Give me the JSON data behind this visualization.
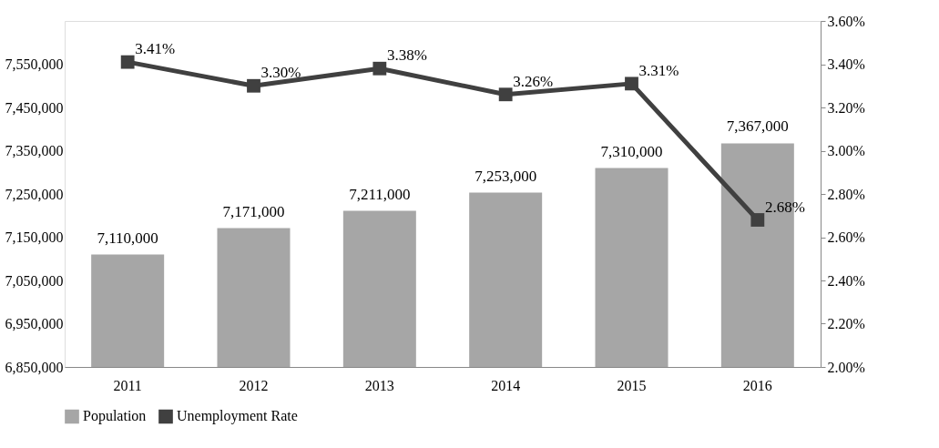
{
  "chart_data": {
    "type": "bar",
    "categories": [
      "2011",
      "2012",
      "2013",
      "2014",
      "2015",
      "2016"
    ],
    "series": [
      {
        "name": "Population",
        "color": "#a6a6a6",
        "values": [
          7110000,
          7171000,
          7211000,
          7253000,
          7310000,
          7367000
        ],
        "value_labels": [
          "7,110,000",
          "7,171,000",
          "7,211,000",
          "7,253,000",
          "7,310,000",
          "7,367,000"
        ]
      },
      {
        "name": "Unemployment Rate",
        "type": "line",
        "axis": "y2",
        "color": "#404040",
        "values": [
          3.41,
          3.3,
          3.38,
          3.26,
          3.31,
          2.68
        ],
        "value_labels": [
          "3.41%",
          "3.30%",
          "3.38%",
          "3.26%",
          "3.31%",
          "2.68%"
        ]
      }
    ],
    "ylim": [
      6850000,
      7650000
    ],
    "yticks": [
      {
        "value": 6850000,
        "label": "6,850,000"
      },
      {
        "value": 6950000,
        "label": "6,950,000"
      },
      {
        "value": 7050000,
        "label": "7,050,000"
      },
      {
        "value": 7150000,
        "label": "7,150,000"
      },
      {
        "value": 7250000,
        "label": "7,250,000"
      },
      {
        "value": 7350000,
        "label": "7,350,000"
      },
      {
        "value": 7450000,
        "label": "7,450,000"
      },
      {
        "value": 7550000,
        "label": "7,550,000"
      }
    ],
    "y2lim": [
      2.0,
      3.6
    ],
    "y2ticks": [
      {
        "value": 2.0,
        "label": "2.00%"
      },
      {
        "value": 2.2,
        "label": "2.20%"
      },
      {
        "value": 2.4,
        "label": "2.40%"
      },
      {
        "value": 2.6,
        "label": "2.60%"
      },
      {
        "value": 2.8,
        "label": "2.80%"
      },
      {
        "value": 3.0,
        "label": "3.00%"
      },
      {
        "value": 3.2,
        "label": "3.20%"
      },
      {
        "value": 3.4,
        "label": "3.40%"
      },
      {
        "value": 3.6,
        "label": "3.60%"
      }
    ],
    "legend": "bottom",
    "grid": false,
    "marker": "square",
    "line_style": "solid"
  }
}
